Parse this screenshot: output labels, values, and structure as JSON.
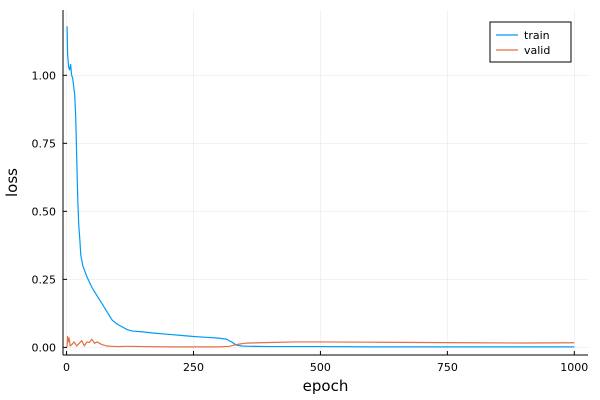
{
  "chart_data": {
    "type": "line",
    "title": "",
    "xlabel": "epoch",
    "ylabel": "loss",
    "xlim": [
      -7,
      1027
    ],
    "ylim": [
      -0.028,
      1.24
    ],
    "xticks": [
      0,
      250,
      500,
      750,
      1000
    ],
    "xtick_labels": [
      "0",
      "250",
      "500",
      "750",
      "1000"
    ],
    "yticks": [
      0,
      0.25,
      0.5,
      0.75,
      1.0
    ],
    "ytick_labels": [
      "0.00",
      "0.25",
      "0.50",
      "0.75",
      "1.00"
    ],
    "grid": true,
    "legend": {
      "position": "top-right"
    },
    "series": [
      {
        "name": "train",
        "color": "#009AFA",
        "x": [
          1,
          2,
          4,
          6,
          8,
          10,
          12,
          14,
          16,
          18,
          20,
          22,
          24,
          26,
          28,
          30,
          32,
          34,
          36,
          40,
          45,
          50,
          60,
          70,
          80,
          90,
          100,
          110,
          120,
          130,
          150,
          175,
          200,
          225,
          250,
          275,
          300,
          315,
          325,
          335,
          345,
          360,
          400,
          500,
          600,
          700,
          800,
          900,
          1000
        ],
        "y": [
          1.18,
          1.08,
          1.03,
          1.02,
          1.04,
          1.0,
          0.99,
          0.96,
          0.93,
          0.85,
          0.7,
          0.55,
          0.45,
          0.4,
          0.34,
          0.32,
          0.3,
          0.29,
          0.28,
          0.26,
          0.24,
          0.22,
          0.19,
          0.16,
          0.13,
          0.1,
          0.085,
          0.075,
          0.065,
          0.06,
          0.057,
          0.052,
          0.048,
          0.044,
          0.04,
          0.037,
          0.034,
          0.03,
          0.02,
          0.008,
          0.005,
          0.004,
          0.003,
          0.003,
          0.002,
          0.002,
          0.002,
          0.002,
          0.002
        ]
      },
      {
        "name": "valid",
        "color": "#E26F46",
        "x": [
          1,
          2,
          3,
          5,
          7,
          10,
          15,
          20,
          25,
          30,
          35,
          40,
          45,
          50,
          55,
          60,
          70,
          80,
          90,
          100,
          120,
          150,
          200,
          250,
          300,
          320,
          330,
          340,
          350,
          360,
          400,
          450,
          500,
          600,
          700,
          800,
          900,
          1000
        ],
        "y": [
          0.0,
          0.04,
          0.02,
          0.035,
          0.005,
          0.01,
          0.02,
          0.005,
          0.015,
          0.025,
          0.005,
          0.02,
          0.018,
          0.03,
          0.015,
          0.02,
          0.01,
          0.005,
          0.004,
          0.003,
          0.004,
          0.003,
          0.002,
          0.002,
          0.002,
          0.004,
          0.008,
          0.012,
          0.015,
          0.016,
          0.018,
          0.02,
          0.02,
          0.019,
          0.018,
          0.017,
          0.016,
          0.017
        ]
      }
    ]
  }
}
